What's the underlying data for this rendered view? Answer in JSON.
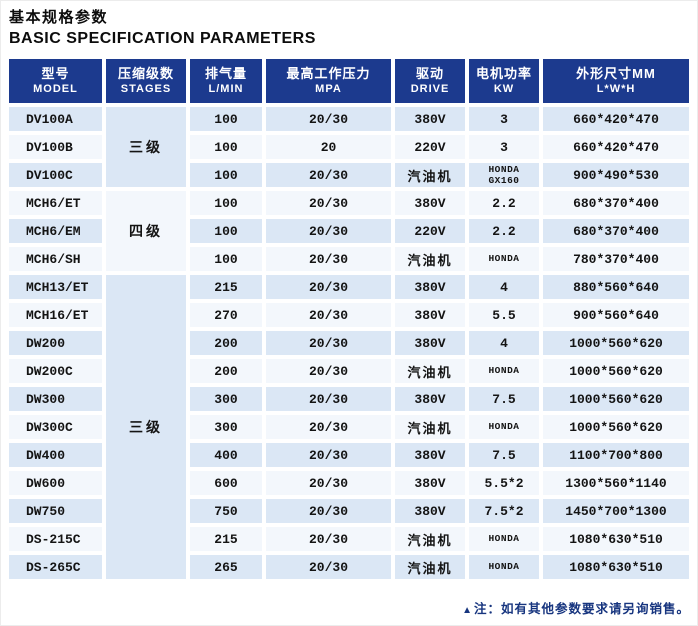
{
  "page": {
    "title_zh": "基本规格参数",
    "title_en": "BASIC SPECIFICATION PARAMETERS",
    "note_marker": "▲",
    "note_text": "注：如有其他参数要求请另询销售。"
  },
  "colors": {
    "header_blue": "#1c3a8e",
    "row_light_blue": "#dbe7f5",
    "row_pale_white": "#f3f7fc",
    "note_blue": "#17357f",
    "title_black": "#0c0c0c"
  },
  "table": {
    "columns": [
      {
        "zh": "型号",
        "en": "MODEL"
      },
      {
        "zh": "压缩级数",
        "en": "STAGES"
      },
      {
        "zh": "排气量",
        "en": "L/MIN"
      },
      {
        "zh": "最高工作压力",
        "en": "MPA"
      },
      {
        "zh": "驱动",
        "en": "DRIVE"
      },
      {
        "zh": "电机功率",
        "en": "KW"
      },
      {
        "zh": "外形尺寸MM",
        "en": "L*W*H"
      }
    ],
    "stage_groups": [
      {
        "label": "三级",
        "row_span": 3,
        "bg": "light"
      },
      {
        "label": "四级",
        "row_span": 3,
        "bg": "pale"
      },
      {
        "label": "三级",
        "row_span": 11,
        "bg": "light"
      }
    ],
    "rows": [
      {
        "model": "DV100A",
        "flow": "100",
        "pressure": "20/30",
        "drive": "380V",
        "drive_cjk": false,
        "power": "3",
        "power_small": false,
        "dims": "660*420*470"
      },
      {
        "model": "DV100B",
        "flow": "100",
        "pressure": "20",
        "drive": "220V",
        "drive_cjk": false,
        "power": "3",
        "power_small": false,
        "dims": "660*420*470"
      },
      {
        "model": "DV100C",
        "flow": "100",
        "pressure": "20/30",
        "drive": "汽油机",
        "drive_cjk": true,
        "power": "HONDA\nGX160",
        "power_small": true,
        "dims": "900*490*530"
      },
      {
        "model": "MCH6/ET",
        "flow": "100",
        "pressure": "20/30",
        "drive": "380V",
        "drive_cjk": false,
        "power": "2.2",
        "power_small": false,
        "dims": "680*370*400"
      },
      {
        "model": "MCH6/EM",
        "flow": "100",
        "pressure": "20/30",
        "drive": "220V",
        "drive_cjk": false,
        "power": "2.2",
        "power_small": false,
        "dims": "680*370*400"
      },
      {
        "model": "MCH6/SH",
        "flow": "100",
        "pressure": "20/30",
        "drive": "汽油机",
        "drive_cjk": true,
        "power": "HONDA",
        "power_small": true,
        "dims": "780*370*400"
      },
      {
        "model": "MCH13/ET",
        "flow": "215",
        "pressure": "20/30",
        "drive": "380V",
        "drive_cjk": false,
        "power": "4",
        "power_small": false,
        "dims": "880*560*640"
      },
      {
        "model": "MCH16/ET",
        "flow": "270",
        "pressure": "20/30",
        "drive": "380V",
        "drive_cjk": false,
        "power": "5.5",
        "power_small": false,
        "dims": "900*560*640"
      },
      {
        "model": "DW200",
        "flow": "200",
        "pressure": "20/30",
        "drive": "380V",
        "drive_cjk": false,
        "power": "4",
        "power_small": false,
        "dims": "1000*560*620"
      },
      {
        "model": "DW200C",
        "flow": "200",
        "pressure": "20/30",
        "drive": "汽油机",
        "drive_cjk": true,
        "power": "HONDA",
        "power_small": true,
        "dims": "1000*560*620"
      },
      {
        "model": "DW300",
        "flow": "300",
        "pressure": "20/30",
        "drive": "380V",
        "drive_cjk": false,
        "power": "7.5",
        "power_small": false,
        "dims": "1000*560*620"
      },
      {
        "model": "DW300C",
        "flow": "300",
        "pressure": "20/30",
        "drive": "汽油机",
        "drive_cjk": true,
        "power": "HONDA",
        "power_small": true,
        "dims": "1000*560*620"
      },
      {
        "model": "DW400",
        "flow": "400",
        "pressure": "20/30",
        "drive": "380V",
        "drive_cjk": false,
        "power": "7.5",
        "power_small": false,
        "dims": "1100*700*800"
      },
      {
        "model": "DW600",
        "flow": "600",
        "pressure": "20/30",
        "drive": "380V",
        "drive_cjk": false,
        "power": "5.5*2",
        "power_small": false,
        "dims": "1300*560*1140"
      },
      {
        "model": "DW750",
        "flow": "750",
        "pressure": "20/30",
        "drive": "380V",
        "drive_cjk": false,
        "power": "7.5*2",
        "power_small": false,
        "dims": "1450*700*1300"
      },
      {
        "model": "DS-215C",
        "flow": "215",
        "pressure": "20/30",
        "drive": "汽油机",
        "drive_cjk": true,
        "power": "HONDA",
        "power_small": true,
        "dims": "1080*630*510"
      },
      {
        "model": "DS-265C",
        "flow": "265",
        "pressure": "20/30",
        "drive": "汽油机",
        "drive_cjk": true,
        "power": "HONDA",
        "power_small": true,
        "dims": "1080*630*510"
      }
    ]
  }
}
